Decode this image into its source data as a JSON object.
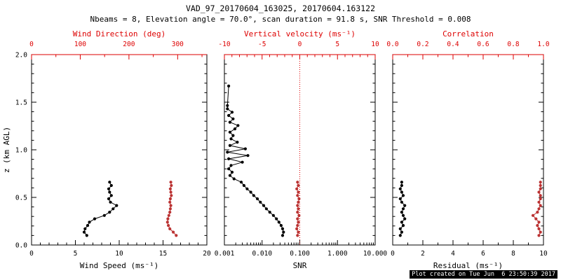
{
  "footer": "Plot created on Tue Jun  6 23:50:39 2017",
  "chart_data": {
    "type": "scatter",
    "title": "VAD_97_20170604_163025, 20170604.163122",
    "subtitle": "Nbeams = 8, Elevation angle = 70.0°, scan duration = 91.8 s, SNR Threshold = 0.008",
    "grid": false,
    "legend": "none",
    "y_axis": {
      "label": "z (km AGL)",
      "range": [
        0,
        2
      ],
      "ticks": [
        0,
        0.5,
        1,
        1.5,
        2
      ],
      "tick_labels": [
        "0.0",
        "0.5",
        "1.0",
        "1.5",
        "2.0"
      ],
      "minor": 5
    },
    "panels": [
      {
        "name": "wind",
        "x_bottom": {
          "label": "Wind Speed (ms⁻¹)",
          "range": [
            0,
            20
          ],
          "scale": "linear",
          "ticks": [
            0,
            5,
            10,
            15,
            20
          ],
          "tick_labels": [
            "0",
            "5",
            "10",
            "15",
            "20"
          ],
          "minor": 5,
          "color": "#000000"
        },
        "x_top": {
          "label": "Wind Direction (deg)",
          "range": [
            0,
            360
          ],
          "scale": "linear",
          "ticks": [
            0,
            100,
            200,
            300
          ],
          "tick_labels": [
            "0",
            "100",
            "200",
            "300"
          ],
          "minor": 2,
          "color": "#dd0000"
        },
        "series": [
          {
            "name": "wind-speed",
            "axis": "bottom",
            "color": "#000000",
            "points": [
              [
                6.3,
                0.1
              ],
              [
                6.0,
                0.135
              ],
              [
                6.1,
                0.17
              ],
              [
                6.4,
                0.205
              ],
              [
                6.6,
                0.24
              ],
              [
                7.2,
                0.275
              ],
              [
                8.3,
                0.31
              ],
              [
                8.9,
                0.345
              ],
              [
                9.3,
                0.38
              ],
              [
                9.7,
                0.415
              ],
              [
                9.0,
                0.45
              ],
              [
                8.8,
                0.485
              ],
              [
                9.1,
                0.52
              ],
              [
                8.9,
                0.555
              ],
              [
                8.8,
                0.59
              ],
              [
                9.1,
                0.625
              ],
              [
                8.9,
                0.66
              ]
            ]
          },
          {
            "name": "wind-direction",
            "axis": "top",
            "color": "#bb3333",
            "points": [
              [
                297,
                0.1
              ],
              [
                291,
                0.135
              ],
              [
                284,
                0.17
              ],
              [
                281,
                0.205
              ],
              [
                279,
                0.24
              ],
              [
                280,
                0.275
              ],
              [
                282,
                0.31
              ],
              [
                284,
                0.345
              ],
              [
                285,
                0.38
              ],
              [
                286,
                0.415
              ],
              [
                284,
                0.45
              ],
              [
                285,
                0.485
              ],
              [
                287,
                0.52
              ],
              [
                286,
                0.555
              ],
              [
                285,
                0.59
              ],
              [
                287,
                0.625
              ],
              [
                286,
                0.66
              ]
            ]
          }
        ]
      },
      {
        "name": "snr",
        "x_bottom": {
          "label": "SNR",
          "range": [
            0.001,
            10
          ],
          "scale": "log",
          "ticks": [
            0.001,
            0.01,
            0.1,
            1,
            10
          ],
          "tick_labels": [
            "0.001",
            "0.010",
            "0.100",
            "1.000",
            "10.000"
          ],
          "minor": 0,
          "color": "#000000"
        },
        "x_top": {
          "label": "Vertical velocity (ms⁻¹)",
          "range": [
            -10,
            10
          ],
          "scale": "linear",
          "ticks": [
            -10,
            -5,
            0,
            5,
            10
          ],
          "tick_labels": [
            "-10",
            "-5",
            "0",
            "5",
            "10"
          ],
          "minor": 5,
          "color": "#dd0000"
        },
        "vline": {
          "axis": "top",
          "value": 0,
          "style": "dotted",
          "color": "#dd0000"
        },
        "series": [
          {
            "name": "snr-profile",
            "axis": "bottom",
            "color": "#000000",
            "points": [
              [
                0.035,
                0.1
              ],
              [
                0.037,
                0.135
              ],
              [
                0.035,
                0.17
              ],
              [
                0.032,
                0.205
              ],
              [
                0.028,
                0.24
              ],
              [
                0.024,
                0.275
              ],
              [
                0.02,
                0.31
              ],
              [
                0.016,
                0.345
              ],
              [
                0.013,
                0.38
              ],
              [
                0.011,
                0.415
              ],
              [
                0.009,
                0.45
              ],
              [
                0.0075,
                0.485
              ],
              [
                0.006,
                0.52
              ],
              [
                0.005,
                0.555
              ],
              [
                0.004,
                0.59
              ],
              [
                0.0033,
                0.625
              ],
              [
                0.0028,
                0.66
              ],
              [
                0.0018,
                0.695
              ],
              [
                0.0014,
                0.73
              ],
              [
                0.0016,
                0.765
              ],
              [
                0.0013,
                0.8
              ],
              [
                0.0015,
                0.835
              ],
              [
                0.003,
                0.87
              ],
              [
                0.0013,
                0.905
              ],
              [
                0.0042,
                0.94
              ],
              [
                0.0012,
                0.975
              ],
              [
                0.0036,
                1.01
              ],
              [
                0.0014,
                1.045
              ],
              [
                0.0022,
                1.08
              ],
              [
                0.0015,
                1.115
              ],
              [
                0.0017,
                1.15
              ],
              [
                0.0014,
                1.185
              ],
              [
                0.0019,
                1.22
              ],
              [
                0.0023,
                1.255
              ],
              [
                0.0014,
                1.29
              ],
              [
                0.0017,
                1.325
              ],
              [
                0.0013,
                1.36
              ],
              [
                0.0016,
                1.395
              ],
              [
                0.0012,
                1.43
              ],
              [
                0.0012,
                1.465
              ],
              [
                0.0013,
                1.67
              ]
            ]
          },
          {
            "name": "vertical-velocity",
            "axis": "top",
            "color": "#bb3333",
            "points": [
              [
                -0.3,
                0.1
              ],
              [
                -0.2,
                0.135
              ],
              [
                -0.4,
                0.17
              ],
              [
                -0.3,
                0.205
              ],
              [
                -0.2,
                0.24
              ],
              [
                -0.3,
                0.275
              ],
              [
                -0.1,
                0.31
              ],
              [
                -0.3,
                0.345
              ],
              [
                -0.2,
                0.38
              ],
              [
                -0.3,
                0.415
              ],
              [
                -0.2,
                0.45
              ],
              [
                -0.1,
                0.485
              ],
              [
                -0.3,
                0.52
              ],
              [
                -0.2,
                0.555
              ],
              [
                -0.4,
                0.59
              ],
              [
                -0.2,
                0.625
              ],
              [
                -0.3,
                0.66
              ]
            ]
          }
        ]
      },
      {
        "name": "residual",
        "x_bottom": {
          "label": "Residual (ms⁻¹)",
          "range": [
            0,
            10
          ],
          "scale": "linear",
          "ticks": [
            0,
            2,
            4,
            6,
            8,
            10
          ],
          "tick_labels": [
            "0",
            "2",
            "4",
            "6",
            "8",
            "10"
          ],
          "minor": 2,
          "color": "#000000"
        },
        "x_top": {
          "label": "Correlation",
          "range": [
            0,
            1
          ],
          "scale": "linear",
          "ticks": [
            0,
            0.2,
            0.4,
            0.6,
            0.8,
            1.0
          ],
          "tick_labels": [
            "0.0",
            "0.2",
            "0.4",
            "0.6",
            "0.8",
            "1.0"
          ],
          "minor": 2,
          "color": "#dd0000"
        },
        "series": [
          {
            "name": "residual",
            "axis": "bottom",
            "color": "#000000",
            "points": [
              [
                0.5,
                0.1
              ],
              [
                0.6,
                0.135
              ],
              [
                0.5,
                0.17
              ],
              [
                0.7,
                0.205
              ],
              [
                0.6,
                0.24
              ],
              [
                0.8,
                0.275
              ],
              [
                0.7,
                0.31
              ],
              [
                0.6,
                0.345
              ],
              [
                0.7,
                0.38
              ],
              [
                0.8,
                0.415
              ],
              [
                0.6,
                0.45
              ],
              [
                0.5,
                0.485
              ],
              [
                0.7,
                0.52
              ],
              [
                0.6,
                0.555
              ],
              [
                0.5,
                0.59
              ],
              [
                0.6,
                0.625
              ],
              [
                0.6,
                0.66
              ]
            ]
          },
          {
            "name": "correlation",
            "axis": "top",
            "color": "#bb3333",
            "points": [
              [
                0.97,
                0.1
              ],
              [
                0.98,
                0.135
              ],
              [
                0.97,
                0.17
              ],
              [
                0.96,
                0.205
              ],
              [
                0.97,
                0.24
              ],
              [
                0.95,
                0.275
              ],
              [
                0.93,
                0.31
              ],
              [
                0.96,
                0.345
              ],
              [
                0.97,
                0.38
              ],
              [
                0.98,
                0.415
              ],
              [
                0.97,
                0.45
              ],
              [
                0.98,
                0.485
              ],
              [
                0.98,
                0.52
              ],
              [
                0.97,
                0.555
              ],
              [
                0.98,
                0.59
              ],
              [
                0.98,
                0.625
              ],
              [
                0.98,
                0.66
              ]
            ]
          }
        ]
      }
    ]
  }
}
